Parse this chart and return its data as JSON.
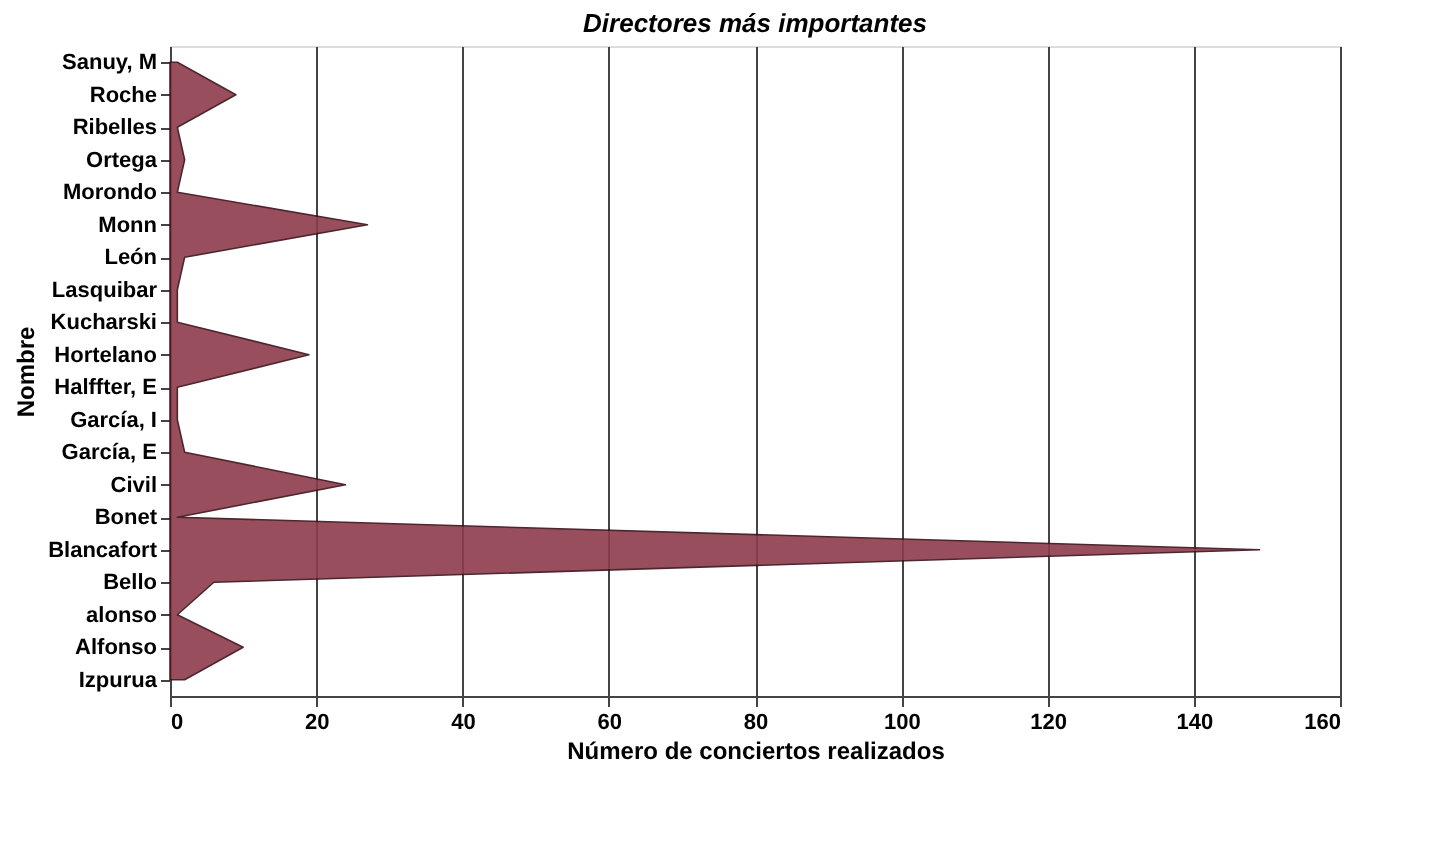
{
  "chart_data": {
    "type": "area",
    "orientation": "horizontal",
    "title": "Directores más importantes",
    "xlabel": "Número de conciertos realizados",
    "ylabel": "Nombre",
    "categories": [
      "Sanuy, M",
      "Roche",
      "Ribelles",
      "Ortega",
      "Morondo",
      "Monn",
      "León",
      "Lasquibar",
      "Kucharski",
      "Hortelano",
      "Halffter, E",
      "García, I",
      "García, E",
      "Civil",
      "Bonet",
      "Blancafort",
      "Bello",
      "alonso",
      "Alfonso",
      "Izpurua"
    ],
    "series": [
      {
        "color": "#8e3b4c",
        "values": [
          1,
          9,
          1,
          2,
          1,
          27,
          2,
          1,
          1,
          19,
          1,
          1,
          2,
          24,
          1,
          149,
          6,
          1,
          10,
          2
        ]
      }
    ],
    "xlim": [
      0,
      160
    ],
    "xticks": [
      0,
      20,
      40,
      60,
      80,
      100,
      120,
      140,
      160
    ],
    "grid": "x"
  }
}
